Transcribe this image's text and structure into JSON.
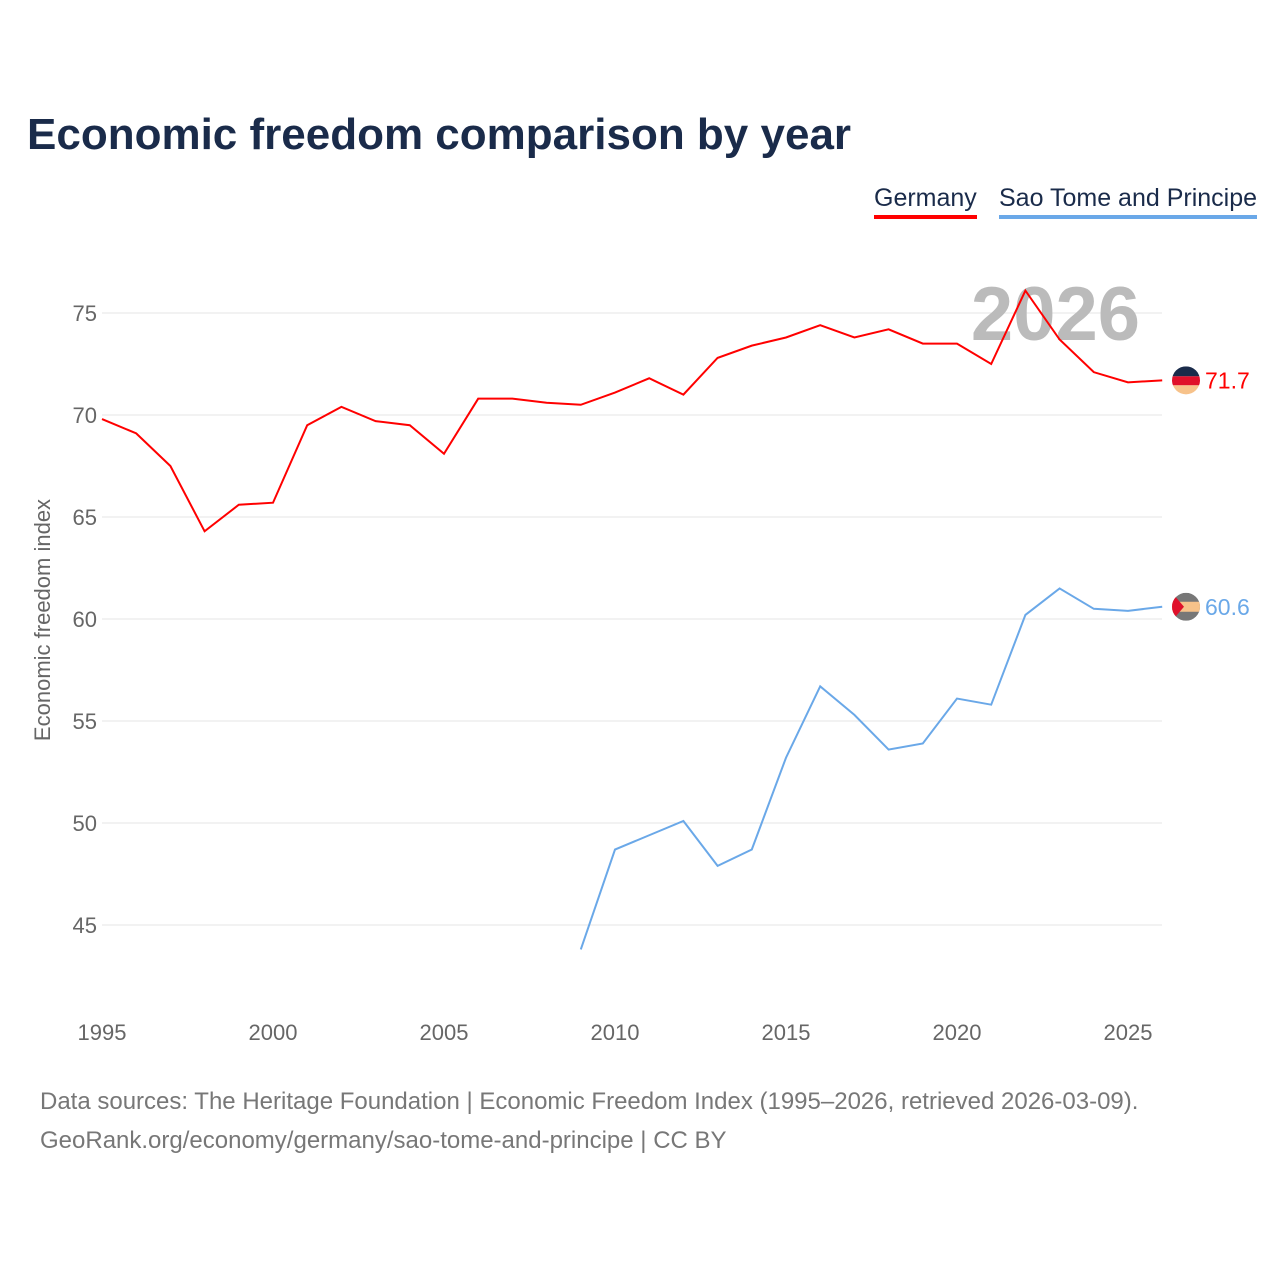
{
  "title": "Economic freedom comparison by year",
  "legend": [
    {
      "label": "Germany",
      "color": "#ff0000"
    },
    {
      "label": "Sao Tome and Principe",
      "color": "#6aa8e8"
    }
  ],
  "footer": {
    "sources": "Data sources: The Heritage Foundation | Economic Freedom Index (1995–2026, retrieved 2026-03-09).",
    "link": "GeoRank.org/economy/germany/sao-tome-and-principe | CC BY"
  },
  "chart_data": {
    "type": "line",
    "title": "Economic freedom comparison by year",
    "xlabel": "",
    "ylabel": "Economic freedom index",
    "watermark_year": "2026",
    "xlim": [
      1995,
      2026
    ],
    "ylim": [
      41.5,
      78
    ],
    "xticks": [
      "1995",
      "2000",
      "2005",
      "2010",
      "2015",
      "2020",
      "2025"
    ],
    "yticks": [
      "45",
      "50",
      "55",
      "60",
      "65",
      "70",
      "75"
    ],
    "grid": true,
    "legend_position": "top-right",
    "series": [
      {
        "name": "Germany",
        "color": "#ff0000",
        "end_label": "71.7",
        "x": [
          1995,
          1996,
          1997,
          1998,
          1999,
          2000,
          2001,
          2002,
          2003,
          2004,
          2005,
          2006,
          2007,
          2008,
          2009,
          2010,
          2011,
          2012,
          2013,
          2014,
          2015,
          2016,
          2017,
          2018,
          2019,
          2020,
          2021,
          2022,
          2023,
          2024,
          2025,
          2026
        ],
        "values": [
          69.8,
          69.1,
          67.5,
          64.3,
          65.6,
          65.7,
          69.5,
          70.4,
          69.7,
          69.5,
          68.1,
          70.8,
          70.8,
          70.6,
          70.5,
          71.1,
          71.8,
          71.0,
          72.8,
          73.4,
          73.8,
          74.4,
          73.8,
          74.2,
          73.5,
          73.5,
          72.5,
          76.1,
          73.7,
          72.1,
          71.6,
          71.7
        ]
      },
      {
        "name": "Sao Tome and Principe",
        "color": "#6aa8e8",
        "end_label": "60.6",
        "x": [
          2009,
          2010,
          2011,
          2012,
          2013,
          2014,
          2015,
          2016,
          2017,
          2018,
          2019,
          2020,
          2021,
          2022,
          2023,
          2024,
          2025,
          2026
        ],
        "values": [
          43.8,
          48.7,
          49.4,
          50.1,
          47.9,
          48.7,
          53.2,
          56.7,
          55.3,
          53.6,
          53.9,
          56.1,
          55.8,
          60.2,
          61.5,
          60.5,
          60.4,
          60.6
        ]
      }
    ]
  }
}
